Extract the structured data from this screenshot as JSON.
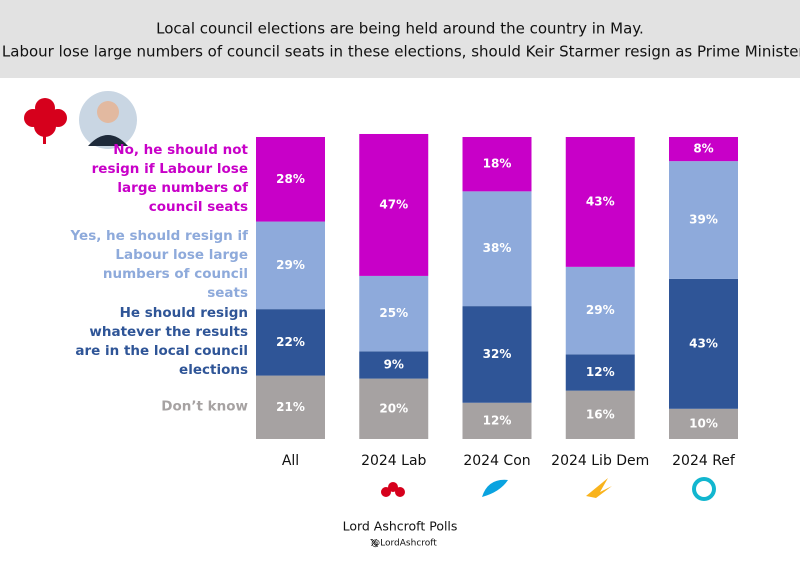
{
  "chart_data": {
    "type": "stacked-bar",
    "title": "Local council elections are being held around the country in May.",
    "subtitle": "If Labour lose large numbers of council seats in these elections, should Keir Starmer resign as Prime Minister?",
    "categories": [
      "All",
      "2024 Lab",
      "2024 Con",
      "2024 Lib Dem",
      "2024 Ref"
    ],
    "ylim": [
      0,
      100
    ],
    "series": [
      {
        "name": "No, he should not resign if Labour lose large numbers of council seats",
        "color": "#c800c8",
        "values": [
          28,
          47,
          18,
          43,
          8
        ],
        "value_labels": [
          "28%",
          "47%",
          "18%",
          "43%",
          "8%"
        ]
      },
      {
        "name": "Yes, he should resign if Labour lose large numbers of council seats",
        "color": "#8eaadb",
        "values": [
          29,
          25,
          38,
          29,
          39
        ],
        "value_labels": [
          "29%",
          "25%",
          "38%",
          "29%",
          "39%"
        ]
      },
      {
        "name": "He should resign whatever the results are in the local council elections",
        "color": "#2f5597",
        "values": [
          22,
          9,
          32,
          12,
          43
        ],
        "value_labels": [
          "22%",
          "9%",
          "32%",
          "12%",
          "43%"
        ]
      },
      {
        "name": "Don’t know",
        "color": "#a6a2a2",
        "values": [
          21,
          20,
          12,
          16,
          10
        ],
        "value_labels": [
          "21%",
          "20%",
          "12%",
          "16%",
          "10%"
        ]
      }
    ],
    "footer": "Lord Ashcroft Polls",
    "handle": "@LordAshcroft"
  }
}
